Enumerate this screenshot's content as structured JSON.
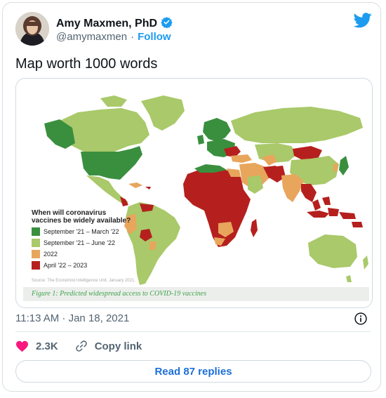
{
  "author": {
    "name": "Amy Maxmen, PhD",
    "handle": "@amymaxmen",
    "separator": "·",
    "follow_label": "Follow"
  },
  "tweet": {
    "text": "Map worth 1000 words"
  },
  "media": {
    "legend_title_line1": "When will coronavirus",
    "legend_title_line2": "vaccines be widely available?",
    "legend": [
      {
        "label": "September '21 – March '22",
        "color": "#3a8f3f"
      },
      {
        "label": "September '21 – June '22",
        "color": "#a9c96a"
      },
      {
        "label": "2022",
        "color": "#e8a65c"
      },
      {
        "label": "April '22 – 2023",
        "color": "#b5201e"
      }
    ],
    "source": "Source: The Economist Intelligence Unit, January 2021.",
    "caption": "Figure 1: Predicted widespread access to COVID-19 vaccines"
  },
  "meta": {
    "timestamp": "11:13 AM · Jan 18, 2021"
  },
  "actions": {
    "like_count": "2.3K",
    "copy_link_label": "Copy link",
    "read_replies_label": "Read 87 replies"
  },
  "colors": {
    "accent": "#1d9bf0",
    "like": "#f91880",
    "text_secondary": "#536471"
  },
  "icons": [
    "verified-badge-icon",
    "twitter-bird-icon",
    "info-icon",
    "heart-icon",
    "link-icon"
  ]
}
